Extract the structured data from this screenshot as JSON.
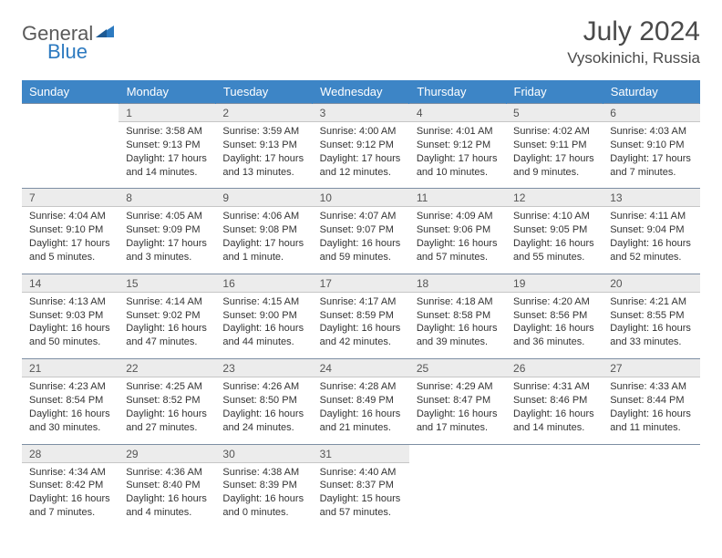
{
  "logo": {
    "word1": "General",
    "word2": "Blue"
  },
  "title": "July 2024",
  "location": "Vysokinichi, Russia",
  "weekdays": [
    "Sunday",
    "Monday",
    "Tuesday",
    "Wednesday",
    "Thursday",
    "Friday",
    "Saturday"
  ],
  "colors": {
    "header_bg": "#3d85c6",
    "header_text": "#ffffff",
    "daynum_bg": "#ececec",
    "rule": "#7d8ea3",
    "logo_gray": "#5a5a5a",
    "logo_blue": "#2d7ac0"
  },
  "weeks": [
    [
      null,
      {
        "n": "1",
        "sr": "3:58 AM",
        "ss": "9:13 PM",
        "dl": "17 hours and 14 minutes"
      },
      {
        "n": "2",
        "sr": "3:59 AM",
        "ss": "9:13 PM",
        "dl": "17 hours and 13 minutes"
      },
      {
        "n": "3",
        "sr": "4:00 AM",
        "ss": "9:12 PM",
        "dl": "17 hours and 12 minutes"
      },
      {
        "n": "4",
        "sr": "4:01 AM",
        "ss": "9:12 PM",
        "dl": "17 hours and 10 minutes"
      },
      {
        "n": "5",
        "sr": "4:02 AM",
        "ss": "9:11 PM",
        "dl": "17 hours and 9 minutes"
      },
      {
        "n": "6",
        "sr": "4:03 AM",
        "ss": "9:10 PM",
        "dl": "17 hours and 7 minutes"
      }
    ],
    [
      {
        "n": "7",
        "sr": "4:04 AM",
        "ss": "9:10 PM",
        "dl": "17 hours and 5 minutes"
      },
      {
        "n": "8",
        "sr": "4:05 AM",
        "ss": "9:09 PM",
        "dl": "17 hours and 3 minutes"
      },
      {
        "n": "9",
        "sr": "4:06 AM",
        "ss": "9:08 PM",
        "dl": "17 hours and 1 minute"
      },
      {
        "n": "10",
        "sr": "4:07 AM",
        "ss": "9:07 PM",
        "dl": "16 hours and 59 minutes"
      },
      {
        "n": "11",
        "sr": "4:09 AM",
        "ss": "9:06 PM",
        "dl": "16 hours and 57 minutes"
      },
      {
        "n": "12",
        "sr": "4:10 AM",
        "ss": "9:05 PM",
        "dl": "16 hours and 55 minutes"
      },
      {
        "n": "13",
        "sr": "4:11 AM",
        "ss": "9:04 PM",
        "dl": "16 hours and 52 minutes"
      }
    ],
    [
      {
        "n": "14",
        "sr": "4:13 AM",
        "ss": "9:03 PM",
        "dl": "16 hours and 50 minutes"
      },
      {
        "n": "15",
        "sr": "4:14 AM",
        "ss": "9:02 PM",
        "dl": "16 hours and 47 minutes"
      },
      {
        "n": "16",
        "sr": "4:15 AM",
        "ss": "9:00 PM",
        "dl": "16 hours and 44 minutes"
      },
      {
        "n": "17",
        "sr": "4:17 AM",
        "ss": "8:59 PM",
        "dl": "16 hours and 42 minutes"
      },
      {
        "n": "18",
        "sr": "4:18 AM",
        "ss": "8:58 PM",
        "dl": "16 hours and 39 minutes"
      },
      {
        "n": "19",
        "sr": "4:20 AM",
        "ss": "8:56 PM",
        "dl": "16 hours and 36 minutes"
      },
      {
        "n": "20",
        "sr": "4:21 AM",
        "ss": "8:55 PM",
        "dl": "16 hours and 33 minutes"
      }
    ],
    [
      {
        "n": "21",
        "sr": "4:23 AM",
        "ss": "8:54 PM",
        "dl": "16 hours and 30 minutes"
      },
      {
        "n": "22",
        "sr": "4:25 AM",
        "ss": "8:52 PM",
        "dl": "16 hours and 27 minutes"
      },
      {
        "n": "23",
        "sr": "4:26 AM",
        "ss": "8:50 PM",
        "dl": "16 hours and 24 minutes"
      },
      {
        "n": "24",
        "sr": "4:28 AM",
        "ss": "8:49 PM",
        "dl": "16 hours and 21 minutes"
      },
      {
        "n": "25",
        "sr": "4:29 AM",
        "ss": "8:47 PM",
        "dl": "16 hours and 17 minutes"
      },
      {
        "n": "26",
        "sr": "4:31 AM",
        "ss": "8:46 PM",
        "dl": "16 hours and 14 minutes"
      },
      {
        "n": "27",
        "sr": "4:33 AM",
        "ss": "8:44 PM",
        "dl": "16 hours and 11 minutes"
      }
    ],
    [
      {
        "n": "28",
        "sr": "4:34 AM",
        "ss": "8:42 PM",
        "dl": "16 hours and 7 minutes"
      },
      {
        "n": "29",
        "sr": "4:36 AM",
        "ss": "8:40 PM",
        "dl": "16 hours and 4 minutes"
      },
      {
        "n": "30",
        "sr": "4:38 AM",
        "ss": "8:39 PM",
        "dl": "16 hours and 0 minutes"
      },
      {
        "n": "31",
        "sr": "4:40 AM",
        "ss": "8:37 PM",
        "dl": "15 hours and 57 minutes"
      },
      null,
      null,
      null
    ]
  ],
  "labels": {
    "sunrise": "Sunrise:",
    "sunset": "Sunset:",
    "daylight": "Daylight:"
  }
}
